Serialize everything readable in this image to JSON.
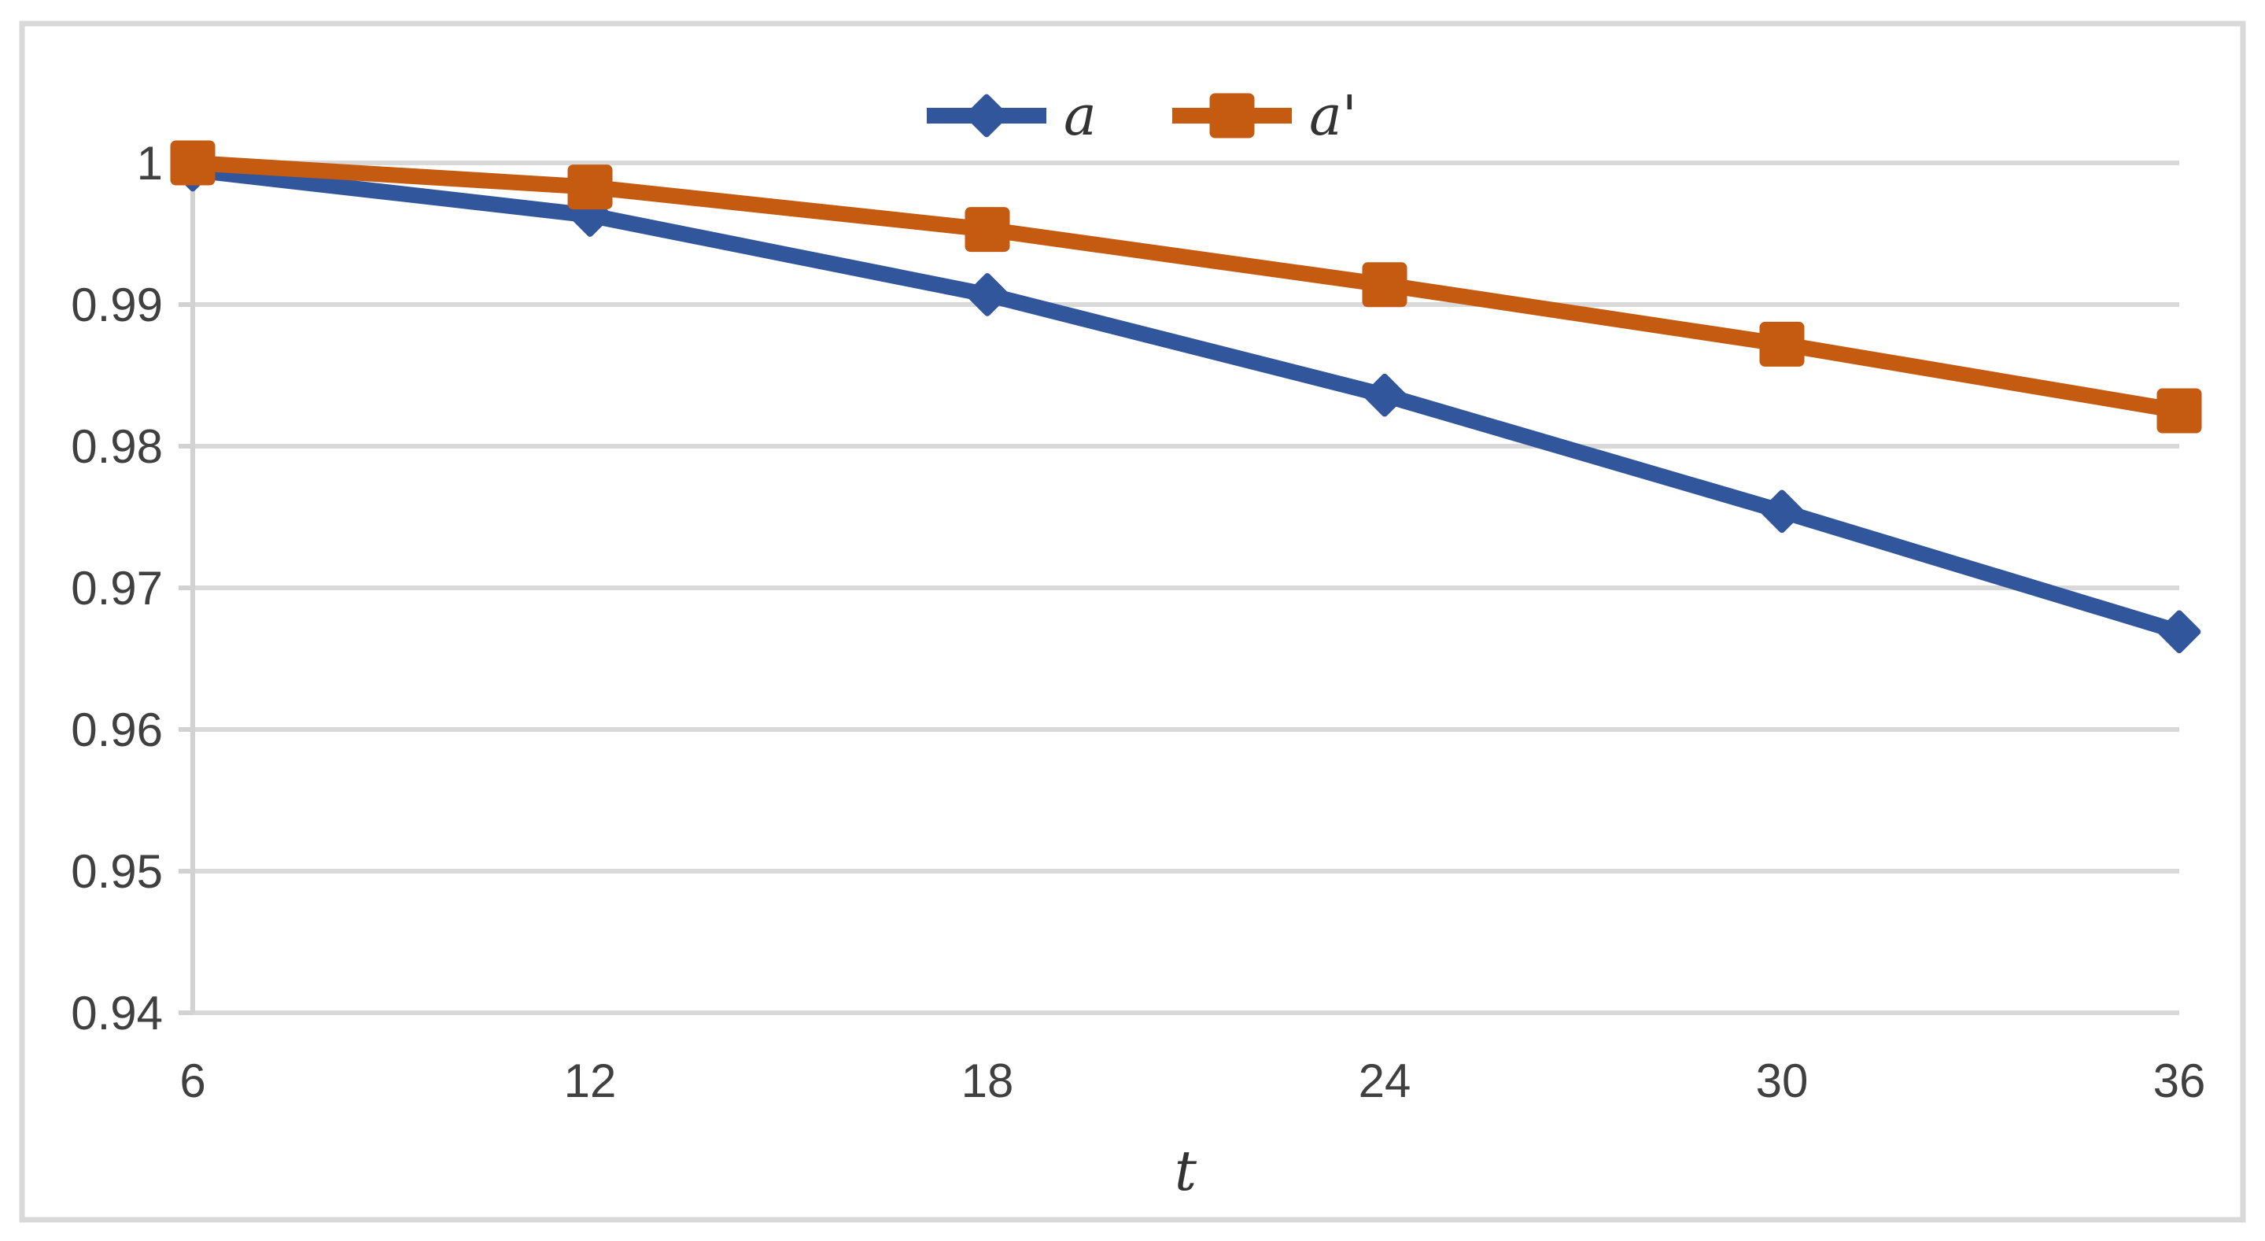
{
  "figure": {
    "background": "#FFFFFF",
    "border_color": "#D9D9D9"
  },
  "chart_data": {
    "type": "line",
    "x": [
      6,
      12,
      18,
      24,
      30,
      36
    ],
    "xticks": [
      "6",
      "12",
      "18",
      "24",
      "30",
      "36"
    ],
    "xlabel": "t",
    "ylim": [
      0.94,
      1.0
    ],
    "ytick_step": 0.01,
    "yticks": [
      "1",
      "0.99",
      "0.98",
      "0.97",
      "0.96",
      "0.95",
      "0.94"
    ],
    "grid": "horizontal",
    "legend_position": "top-center",
    "series": [
      {
        "name": "a",
        "marker": "diamond",
        "color": "#31569B",
        "values": [
          0.9995,
          0.9963,
          0.9907,
          0.9836,
          0.9754,
          0.9669
        ]
      },
      {
        "name": "a'",
        "marker": "square",
        "color": "#C55A11",
        "values": [
          1.0,
          0.9983,
          0.9953,
          0.9914,
          0.9872,
          0.9825
        ]
      }
    ],
    "colors": {
      "gridline": "#D9D9D9",
      "axis_line": "#D2D2D2",
      "tick_text": "#404040"
    }
  }
}
